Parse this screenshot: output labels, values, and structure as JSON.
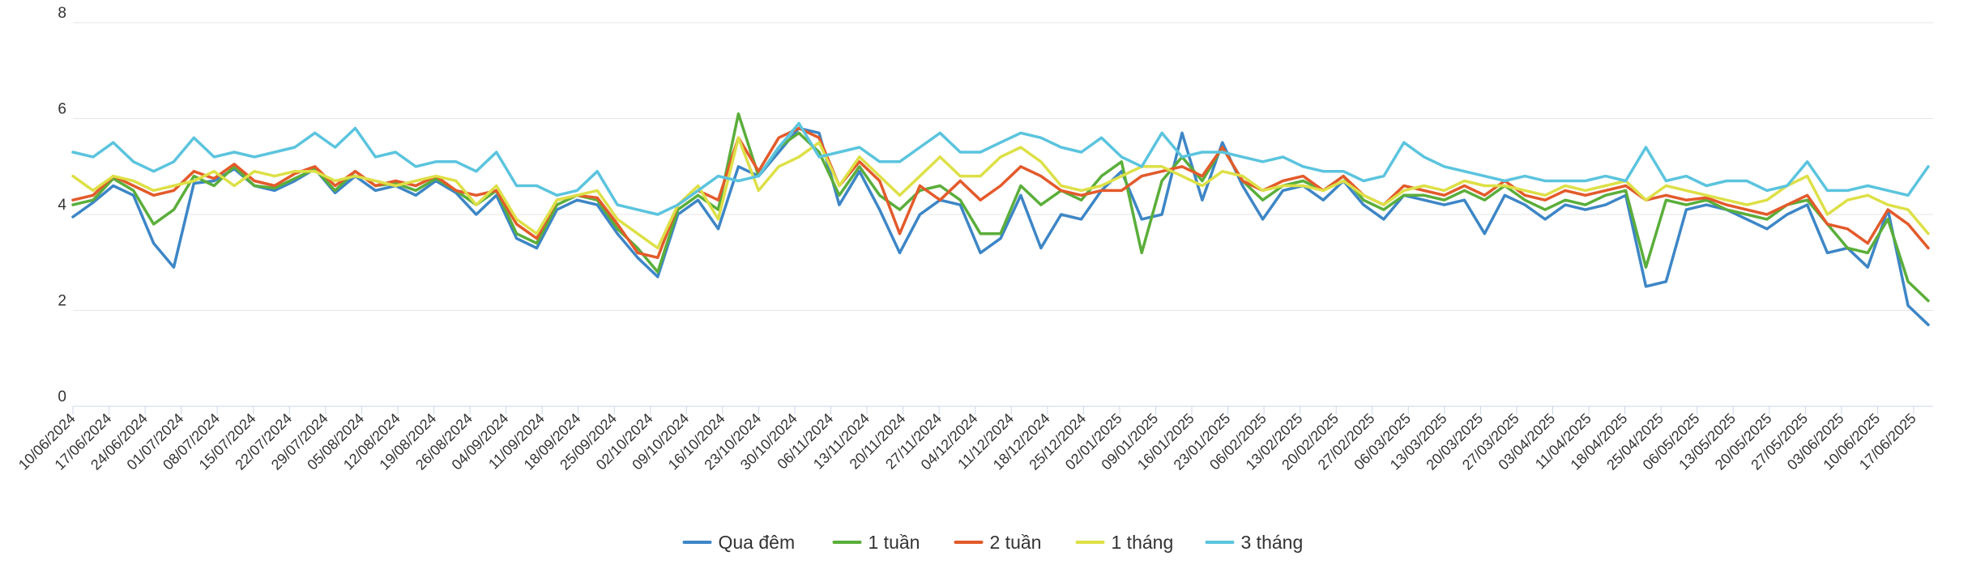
{
  "chart_data": {
    "type": "line",
    "title": "",
    "xlabel": "",
    "ylabel": "",
    "ylim": [
      0,
      8
    ],
    "yticks": [
      0,
      2,
      4,
      6,
      8
    ],
    "grid": true,
    "legend_position": "bottom",
    "x_tick_labels": [
      "10/06/2024",
      "17/06/2024",
      "24/06/2024",
      "01/07/2024",
      "08/07/2024",
      "15/07/2024",
      "22/07/2024",
      "29/07/2024",
      "05/08/2024",
      "12/08/2024",
      "19/08/2024",
      "26/08/2024",
      "04/09/2024",
      "11/09/2024",
      "18/09/2024",
      "25/09/2024",
      "02/10/2024",
      "09/10/2024",
      "16/10/2024",
      "23/10/2024",
      "30/10/2024",
      "06/11/2024",
      "13/11/2024",
      "20/11/2024",
      "27/11/2024",
      "04/12/2024",
      "11/12/2024",
      "18/12/2024",
      "25/12/2024",
      "02/01/2025",
      "09/01/2025",
      "16/01/2025",
      "23/01/2025",
      "06/02/2025",
      "13/02/2025",
      "20/02/2025",
      "27/02/2025",
      "06/03/2025",
      "13/03/2025",
      "20/03/2025",
      "27/03/2025",
      "03/04/2025",
      "11/04/2025",
      "18/04/2025",
      "25/04/2025",
      "06/05/2025",
      "13/05/2025",
      "20/05/2025",
      "27/05/2025",
      "03/06/2025",
      "10/06/2025",
      "17/06/2025"
    ],
    "series": [
      {
        "name": "Qua đêm",
        "color": "#3d86c6",
        "values": [
          3.95,
          4.25,
          4.6,
          4.4,
          3.4,
          2.9,
          4.65,
          4.7,
          4.95,
          4.6,
          4.5,
          4.7,
          4.95,
          4.45,
          4.8,
          4.5,
          4.6,
          4.4,
          4.7,
          4.45,
          4.0,
          4.4,
          3.5,
          3.3,
          4.1,
          4.3,
          4.2,
          3.6,
          3.1,
          2.7,
          4.0,
          4.3,
          3.7,
          5.0,
          4.8,
          5.3,
          5.8,
          5.7,
          4.2,
          4.9,
          4.1,
          3.2,
          4.0,
          4.3,
          4.2,
          3.2,
          3.5,
          4.4,
          3.3,
          4.0,
          3.9,
          4.5,
          4.9,
          3.9,
          4.0,
          5.7,
          4.3,
          5.5,
          4.6,
          3.9,
          4.5,
          4.6,
          4.3,
          4.7,
          4.2,
          3.9,
          4.4,
          4.3,
          4.2,
          4.3,
          3.6,
          4.4,
          4.2,
          3.9,
          4.2,
          4.1,
          4.2,
          4.4,
          2.5,
          2.6,
          4.1,
          4.2,
          4.1,
          3.9,
          3.7,
          4.0,
          4.2,
          3.2,
          3.3,
          2.9,
          4.1,
          2.1,
          1.7
        ]
      },
      {
        "name": "1 tuần",
        "color": "#5aae3a",
        "values": [
          4.2,
          4.3,
          4.75,
          4.5,
          3.8,
          4.1,
          4.8,
          4.6,
          5.0,
          4.6,
          4.55,
          4.75,
          4.95,
          4.5,
          4.9,
          4.6,
          4.65,
          4.5,
          4.75,
          4.5,
          4.2,
          4.5,
          3.6,
          3.4,
          4.2,
          4.4,
          4.3,
          3.7,
          3.3,
          2.8,
          4.1,
          4.4,
          4.1,
          6.1,
          4.8,
          5.4,
          5.7,
          5.3,
          4.4,
          5.0,
          4.4,
          4.1,
          4.5,
          4.6,
          4.3,
          3.6,
          3.6,
          4.6,
          4.2,
          4.5,
          4.3,
          4.8,
          5.1,
          3.2,
          4.7,
          5.2,
          4.7,
          5.4,
          4.7,
          4.3,
          4.6,
          4.7,
          4.5,
          4.8,
          4.3,
          4.1,
          4.4,
          4.4,
          4.3,
          4.5,
          4.3,
          4.6,
          4.3,
          4.1,
          4.3,
          4.2,
          4.4,
          4.5,
          2.9,
          4.3,
          4.2,
          4.3,
          4.1,
          4.0,
          3.9,
          4.2,
          4.3,
          3.8,
          3.3,
          3.2,
          3.9,
          2.6,
          2.2
        ]
      },
      {
        "name": "2 tuần",
        "color": "#e35a2b",
        "values": [
          4.3,
          4.4,
          4.8,
          4.6,
          4.4,
          4.5,
          4.9,
          4.75,
          5.05,
          4.7,
          4.6,
          4.85,
          5.0,
          4.6,
          4.9,
          4.6,
          4.7,
          4.6,
          4.8,
          4.5,
          4.4,
          4.5,
          3.8,
          3.5,
          4.3,
          4.4,
          4.35,
          3.8,
          3.2,
          3.1,
          4.2,
          4.5,
          4.3,
          5.6,
          4.9,
          5.6,
          5.8,
          5.6,
          4.6,
          5.1,
          4.7,
          3.6,
          4.6,
          4.3,
          4.7,
          4.3,
          4.6,
          5.0,
          4.8,
          4.5,
          4.4,
          4.5,
          4.5,
          4.8,
          4.9,
          5.0,
          4.8,
          5.4,
          4.7,
          4.5,
          4.7,
          4.8,
          4.5,
          4.8,
          4.4,
          4.2,
          4.6,
          4.5,
          4.4,
          4.6,
          4.4,
          4.7,
          4.4,
          4.3,
          4.5,
          4.4,
          4.5,
          4.6,
          4.3,
          4.4,
          4.3,
          4.35,
          4.2,
          4.1,
          4.0,
          4.2,
          4.4,
          3.8,
          3.7,
          3.4,
          4.1,
          3.8,
          3.3
        ]
      },
      {
        "name": "1 tháng",
        "color": "#dde046",
        "values": [
          4.8,
          4.5,
          4.8,
          4.7,
          4.5,
          4.6,
          4.7,
          4.9,
          4.6,
          4.9,
          4.8,
          4.9,
          4.9,
          4.7,
          4.8,
          4.7,
          4.6,
          4.7,
          4.8,
          4.7,
          4.2,
          4.6,
          3.9,
          3.6,
          4.3,
          4.4,
          4.5,
          3.9,
          3.6,
          3.3,
          4.2,
          4.6,
          3.9,
          5.6,
          4.5,
          5.0,
          5.2,
          5.5,
          4.6,
          5.2,
          4.8,
          4.4,
          4.8,
          5.2,
          4.8,
          4.8,
          5.2,
          5.4,
          5.1,
          4.6,
          4.5,
          4.6,
          4.8,
          5.0,
          5.0,
          4.8,
          4.6,
          4.9,
          4.8,
          4.5,
          4.6,
          4.6,
          4.5,
          4.7,
          4.4,
          4.2,
          4.5,
          4.6,
          4.5,
          4.7,
          4.6,
          4.6,
          4.5,
          4.4,
          4.6,
          4.5,
          4.6,
          4.7,
          4.3,
          4.6,
          4.5,
          4.4,
          4.3,
          4.2,
          4.3,
          4.6,
          4.8,
          4.0,
          4.3,
          4.4,
          4.2,
          4.1,
          3.6
        ]
      },
      {
        "name": "3 tháng",
        "color": "#5bc4de",
        "values": [
          5.3,
          5.2,
          5.5,
          5.1,
          4.9,
          5.1,
          5.6,
          5.2,
          5.3,
          5.2,
          5.3,
          5.4,
          5.7,
          5.4,
          5.8,
          5.2,
          5.3,
          5.0,
          5.1,
          5.1,
          4.9,
          5.3,
          4.6,
          4.6,
          4.4,
          4.5,
          4.9,
          4.2,
          4.1,
          4.0,
          4.2,
          4.5,
          4.8,
          4.7,
          4.8,
          5.4,
          5.9,
          5.2,
          5.3,
          5.4,
          5.1,
          5.1,
          5.4,
          5.7,
          5.3,
          5.3,
          5.5,
          5.7,
          5.6,
          5.4,
          5.3,
          5.6,
          5.2,
          5.0,
          5.7,
          5.2,
          5.3,
          5.3,
          5.2,
          5.1,
          5.2,
          5.0,
          4.9,
          4.9,
          4.7,
          4.8,
          5.5,
          5.2,
          5.0,
          4.9,
          4.8,
          4.7,
          4.8,
          4.7,
          4.7,
          4.7,
          4.8,
          4.7,
          5.4,
          4.7,
          4.8,
          4.6,
          4.7,
          4.7,
          4.5,
          4.6,
          5.1,
          4.5,
          4.5,
          4.6,
          4.5,
          4.4,
          5.0
        ]
      }
    ]
  }
}
